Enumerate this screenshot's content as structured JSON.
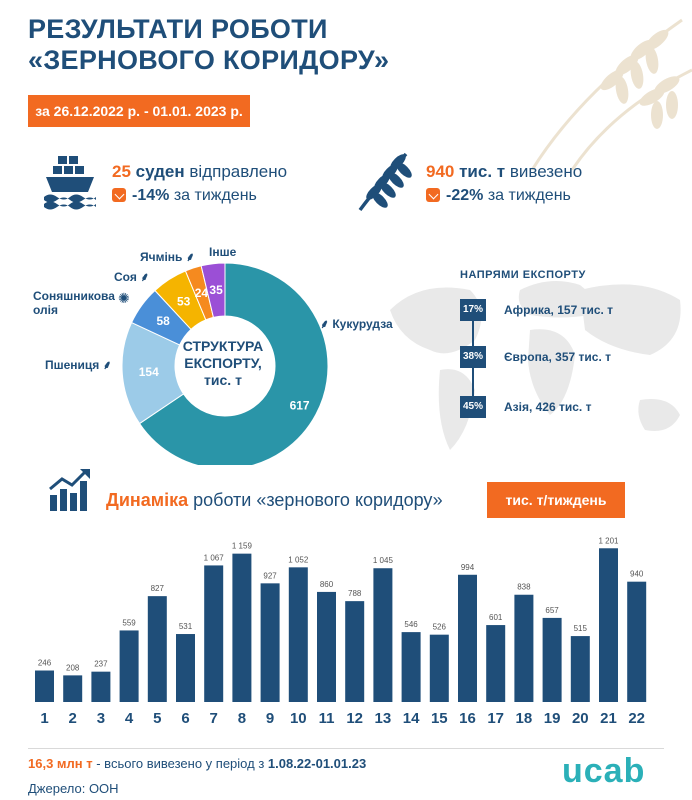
{
  "header": {
    "title_line1": "РЕЗУЛЬТАТИ РОБОТИ",
    "title_line2": "«ЗЕРНОВОГО КОРИДОРУ»",
    "period": "за 26.12.2022 р. - 01.01. 2023 р."
  },
  "stats": {
    "ships": {
      "num": "25",
      "unit": "суден",
      "text": "відправлено",
      "change": "-14%",
      "change_text": "за тиждень",
      "icon": "ship-icon"
    },
    "grain": {
      "num": "940",
      "unit": "тис. т",
      "text": "вивезено",
      "change": "-22%",
      "change_text": "за тиждень",
      "icon": "wheat-icon"
    }
  },
  "pie": {
    "center_line1": "СТРУКТУРА",
    "center_line2": "ЕКСПОРТУ,",
    "center_line3": "тис. т",
    "labels": {
      "corn": "Кукурудза",
      "wheat": "Пшениця",
      "sunflower_line1": "Соняшникова",
      "sunflower_line2": "олія",
      "soy": "Соя",
      "barley": "Ячмінь",
      "other": "Інше"
    }
  },
  "directions": {
    "title": "НАПРЯМИ ЕКСПОРТУ",
    "items": [
      {
        "pct": "17%",
        "label": "Африка, 157 тис. т"
      },
      {
        "pct": "38%",
        "label": "Європа, 357 тис. т"
      },
      {
        "pct": "45%",
        "label": "Азія, 426 тис. т"
      }
    ]
  },
  "dynamics": {
    "title_bold": "Динаміка",
    "title_rest": " роботи «зернового коридору»",
    "unit": "тис. т/тиждень"
  },
  "footer": {
    "total": "16,3 млн т",
    "total_text": " - всього вивезено у період з ",
    "period": "1.08.22-01.01.23",
    "source": "Джерело: ООН",
    "logo": "ucab"
  },
  "colors": {
    "navy": "#1f4e79",
    "orange": "#f26a21",
    "teal": "#2a95a8",
    "light_blue": "#9ccbe8",
    "mid_blue": "#4a8fd8",
    "yellow": "#f5b400",
    "orange_slice": "#f58a1f",
    "purple": "#9b4fd6"
  },
  "chart_data": [
    {
      "type": "pie",
      "title": "СТРУКТУРА ЕКСПОРТУ, тис. т",
      "slices": [
        {
          "label": "Кукурудза",
          "value": 617,
          "color": "#2a95a8"
        },
        {
          "label": "Пшениця",
          "value": 154,
          "color": "#9ccbe8"
        },
        {
          "label": "Соняшникова олія",
          "value": 58,
          "color": "#4a8fd8"
        },
        {
          "label": "Соя",
          "value": 53,
          "color": "#f5b400"
        },
        {
          "label": "Ячмінь",
          "value": 24,
          "color": "#f58a1f"
        },
        {
          "label": "Інше",
          "value": 35,
          "color": "#9b4fd6"
        }
      ]
    },
    {
      "type": "bar",
      "title": "Динаміка роботи «зернового коридору»",
      "ylabel": "тис. т/тиждень",
      "categories": [
        "1",
        "2",
        "3",
        "4",
        "5",
        "6",
        "7",
        "8",
        "9",
        "10",
        "11",
        "12",
        "13",
        "14",
        "15",
        "16",
        "17",
        "18",
        "19",
        "20",
        "21",
        "22"
      ],
      "values": [
        246,
        208,
        237,
        559,
        827,
        531,
        1067,
        1159,
        927,
        1052,
        860,
        788,
        1045,
        546,
        526,
        994,
        601,
        838,
        657,
        515,
        1201,
        940
      ],
      "value_labels": [
        "246",
        "208",
        "237",
        "559",
        "827",
        "531",
        "1 067",
        "1 159",
        "927",
        "1 052",
        "860",
        "788",
        "1 045",
        "546",
        "526",
        "994",
        "601",
        "838",
        "657",
        "515",
        "1 201",
        "940"
      ],
      "color": "#1f4e79"
    }
  ]
}
